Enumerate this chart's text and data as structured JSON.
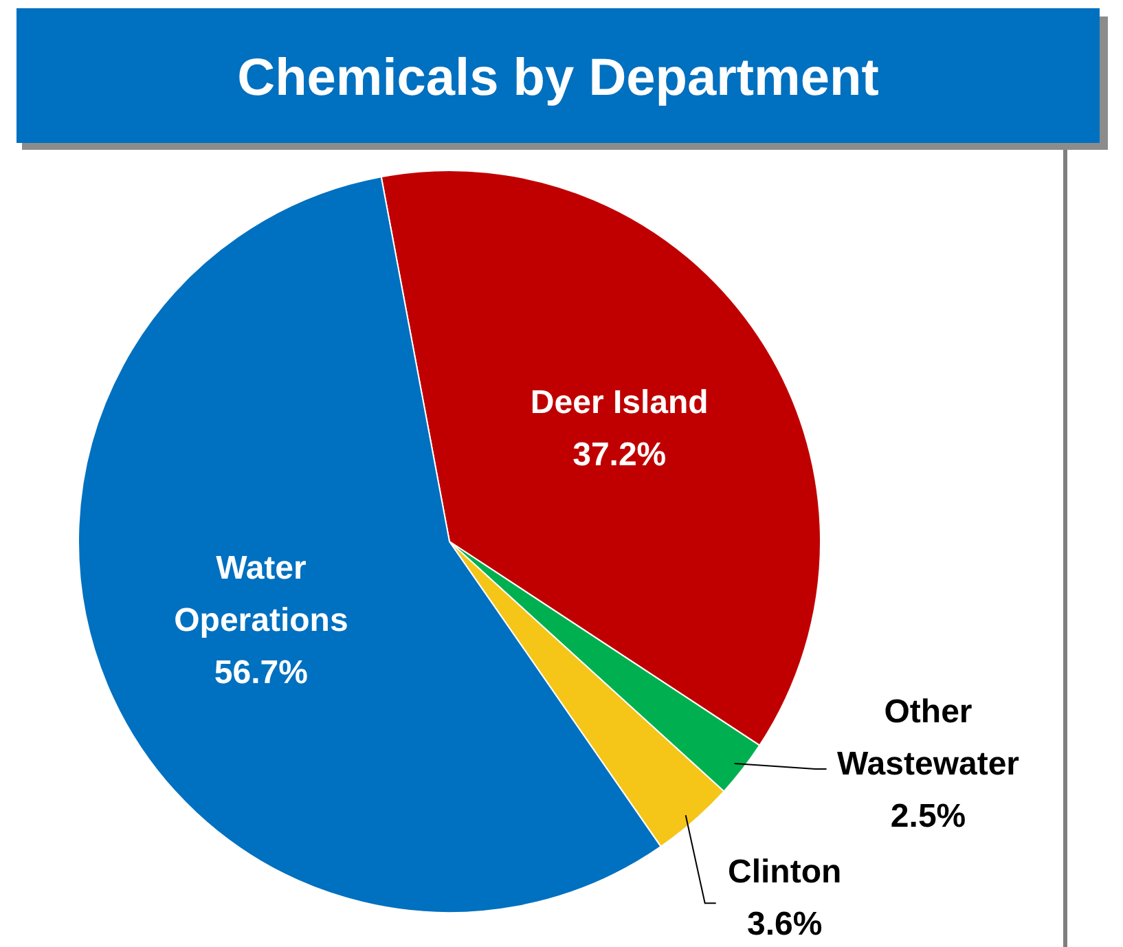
{
  "chart_data": {
    "type": "pie",
    "title": "Chemicals by Department",
    "categories": [
      "Deer Island",
      "Other Wastewater",
      "Clinton",
      "Water Operations"
    ],
    "values": [
      37.2,
      2.5,
      3.6,
      56.7
    ],
    "colors": [
      "#c00000",
      "#00b050",
      "#f5c518",
      "#0070c0"
    ],
    "value_labels": [
      "37.2%",
      "2.5%",
      "3.6%",
      "56.7%"
    ]
  }
}
